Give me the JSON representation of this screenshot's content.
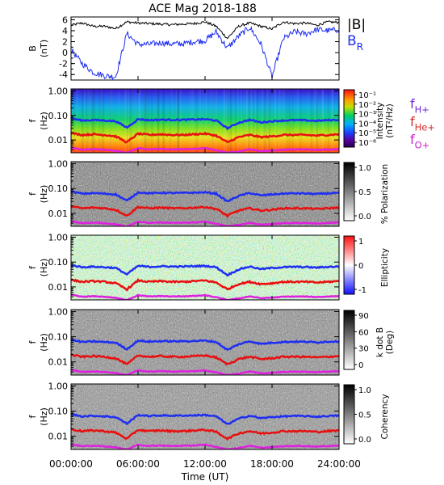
{
  "title": "ACE Mag 2018-188",
  "colors": {
    "black": "#000000",
    "blue": "#1f2ff0",
    "red": "#e81010",
    "magenta": "#e020e0",
    "label_purple": "#6a2ad8",
    "label_red": "#d82a2a",
    "label_magenta": "#d020d0"
  },
  "chart_data": [
    {
      "id": "b_field",
      "type": "line",
      "ylabel": "B",
      "yunit": "(nT)",
      "ylim": [
        -5,
        6.5
      ],
      "yticks": [
        "6",
        "4",
        "2",
        "0",
        "-2",
        "-4"
      ],
      "ytick_values": [
        6,
        4,
        2,
        0,
        -2,
        -4
      ],
      "x_hours": [
        0,
        1,
        2,
        3,
        4,
        5,
        6,
        7,
        8,
        9,
        10,
        11,
        12,
        13,
        14,
        15,
        16,
        17,
        18,
        19,
        20,
        21,
        22,
        23,
        24
      ],
      "series": [
        {
          "name": "|B|",
          "color": "#000000",
          "values": [
            5.0,
            5.4,
            4.8,
            4.8,
            4.4,
            5.6,
            5.4,
            5.3,
            5.2,
            5.1,
            5.2,
            5.3,
            5.6,
            4.8,
            2.6,
            4.8,
            5.4,
            4.8,
            4.3,
            5.6,
            5.3,
            5.4,
            5.0,
            5.6,
            5.5
          ]
        },
        {
          "name": "BR",
          "color": "#1f2ff0",
          "values": [
            0.5,
            -2.0,
            -3.6,
            -4.2,
            -4.4,
            3.5,
            1.5,
            1.5,
            1.8,
            1.6,
            1.6,
            2.0,
            2.2,
            3.8,
            0.8,
            3.0,
            4.6,
            1.6,
            -4.4,
            2.5,
            3.8,
            3.4,
            4.2,
            4.0,
            4.2
          ]
        }
      ],
      "legend": [
        {
          "label": "|B|",
          "sub": "",
          "color": "#000000"
        },
        {
          "label": "B",
          "sub": "R",
          "color": "#1f2ff0"
        }
      ]
    },
    {
      "id": "intensity",
      "type": "heatmap",
      "ylabel": "f",
      "yunit": "(Hz)",
      "yscale": "log",
      "ylim": [
        0.003,
        1.2
      ],
      "yticks": [
        "1.00",
        "0.10",
        "0.01"
      ],
      "colorbar_label": "Intensity",
      "colorbar_unit": "(nT²/Hz)",
      "colorbar_ticks": [
        "10⁻¹",
        "10⁻²",
        "10⁻³",
        "10⁻⁴",
        "10⁻⁵",
        "10⁻⁶"
      ],
      "legend": [
        {
          "label": "f",
          "sub": "H+",
          "color": "#6a2ad8"
        },
        {
          "label": "f",
          "sub": "He+",
          "color": "#d82a2a"
        },
        {
          "label": "f",
          "sub": "O+",
          "color": "#d020d0"
        }
      ]
    },
    {
      "id": "polarization",
      "type": "heatmap",
      "ylabel": "f",
      "yunit": "(Hz)",
      "yscale": "log",
      "ylim": [
        0.003,
        1.2
      ],
      "yticks": [
        "1.00",
        "0.10",
        "0.01"
      ],
      "colorbar_label": "% Polarization",
      "colorbar_ticks": [
        "1.0",
        "0.5",
        "0.0"
      ]
    },
    {
      "id": "ellipticity",
      "type": "heatmap",
      "ylabel": "f",
      "yunit": "(Hz)",
      "yscale": "log",
      "ylim": [
        0.003,
        1.2
      ],
      "yticks": [
        "1.00",
        "0.10",
        "0.01"
      ],
      "colorbar_label": "Ellipticity",
      "colorbar_ticks": [
        "1",
        "0",
        "-1"
      ]
    },
    {
      "id": "k_dot_b",
      "type": "heatmap",
      "ylabel": "f",
      "yunit": "(Hz)",
      "yscale": "log",
      "ylim": [
        0.003,
        1.2
      ],
      "yticks": [
        "1.00",
        "0.10",
        "0.01"
      ],
      "colorbar_label": "k dot B",
      "colorbar_unit": "(Deg)",
      "colorbar_ticks": [
        "90",
        "60",
        "30",
        "0"
      ]
    },
    {
      "id": "coherency",
      "type": "heatmap",
      "ylabel": "f",
      "yunit": "(Hz)",
      "yscale": "log",
      "ylim": [
        0.003,
        1.2
      ],
      "yticks": [
        "1.00",
        "0.10",
        "0.01"
      ],
      "colorbar_label": "Coherency",
      "colorbar_ticks": [
        "1.0",
        "0.5",
        "0.0"
      ]
    }
  ],
  "gyro_curves": {
    "x_hours": [
      0,
      1,
      2,
      3,
      4,
      5,
      6,
      7,
      8,
      9,
      10,
      11,
      12,
      13,
      14,
      15,
      16,
      17,
      18,
      19,
      20,
      21,
      22,
      23,
      24
    ],
    "fH": [
      0.075,
      0.062,
      0.065,
      0.062,
      0.058,
      0.032,
      0.07,
      0.064,
      0.067,
      0.066,
      0.066,
      0.068,
      0.07,
      0.062,
      0.03,
      0.05,
      0.066,
      0.052,
      0.058,
      0.062,
      0.064,
      0.063,
      0.06,
      0.064,
      0.066
    ],
    "fHe": [
      0.019,
      0.016,
      0.017,
      0.016,
      0.014,
      0.008,
      0.018,
      0.016,
      0.017,
      0.016,
      0.016,
      0.017,
      0.018,
      0.015,
      0.008,
      0.013,
      0.016,
      0.013,
      0.014,
      0.016,
      0.016,
      0.016,
      0.015,
      0.016,
      0.017
    ],
    "fO": [
      0.0048,
      0.004,
      0.0042,
      0.004,
      0.0036,
      0.003,
      0.0046,
      0.0041,
      0.0043,
      0.0041,
      0.0042,
      0.0043,
      0.0046,
      0.0038,
      0.003,
      0.0034,
      0.0042,
      0.0035,
      0.0037,
      0.004,
      0.0041,
      0.0041,
      0.0039,
      0.0041,
      0.0043
    ]
  },
  "xaxis": {
    "label": "Time (UT)",
    "ticks": [
      "00:00:00",
      "06:00:00",
      "12:00:00",
      "18:00:00",
      "24:00:00"
    ],
    "tick_hours": [
      0,
      6,
      12,
      18,
      24
    ]
  }
}
